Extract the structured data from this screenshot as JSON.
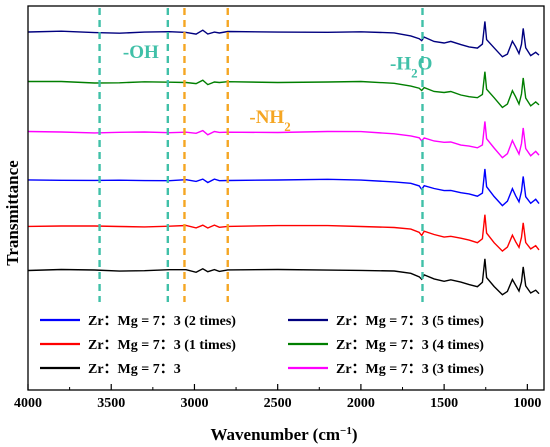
{
  "chart_data": {
    "type": "line",
    "title": "",
    "xlabel": "Wavenumber (cm",
    "xlabel_sup": "−1",
    "xlabel_close": ")",
    "ylabel": "Transmittance",
    "xlim": [
      4000,
      900
    ],
    "x_reversed": true,
    "x_ticks": [
      "4000",
      "3500",
      "3000",
      "2500",
      "2000",
      "1500",
      "1000"
    ],
    "y_ticks_shown": false,
    "grid": false,
    "legend_position": "bottom-center",
    "series": [
      {
        "name": "Zr：Mg = 7：3 (5 times)",
        "color": "#00007f",
        "offset": 5
      },
      {
        "name": "Zr：Mg = 7：3 (4 times)",
        "color": "#007f00",
        "offset": 4
      },
      {
        "name": "Zr：Mg = 7：3 (3 times)",
        "color": "#ff00ff",
        "offset": 3
      },
      {
        "name": "Zr：Mg = 7：3 (2 times)",
        "color": "#0000ff",
        "offset": 2
      },
      {
        "name": "Zr：Mg = 7：3 (1 times)",
        "color": "#ff0000",
        "offset": 1
      },
      {
        "name": "Zr：Mg = 7：3",
        "color": "#000000",
        "offset": 0
      }
    ],
    "legend_order": [
      3,
      0,
      4,
      1,
      5,
      2
    ],
    "spectrum_points": [
      [
        4000,
        0
      ],
      [
        3800,
        0.3
      ],
      [
        3600,
        -0.5
      ],
      [
        3450,
        -0.8
      ],
      [
        3300,
        -0.4
      ],
      [
        3150,
        -0.2
      ],
      [
        3050,
        0
      ],
      [
        2990,
        -2
      ],
      [
        2950,
        1.5
      ],
      [
        2920,
        -2.5
      ],
      [
        2880,
        0.5
      ],
      [
        2850,
        -1
      ],
      [
        2800,
        0
      ],
      [
        2500,
        0
      ],
      [
        2200,
        0.2
      ],
      [
        2000,
        0
      ],
      [
        1800,
        -1.5
      ],
      [
        1700,
        -4
      ],
      [
        1650,
        -7
      ],
      [
        1635,
        -10
      ],
      [
        1620,
        -6
      ],
      [
        1560,
        -10
      ],
      [
        1500,
        -12
      ],
      [
        1460,
        -11
      ],
      [
        1400,
        -14
      ],
      [
        1350,
        -16
      ],
      [
        1300,
        -18
      ],
      [
        1270,
        -14
      ],
      [
        1255,
        12
      ],
      [
        1245,
        -8
      ],
      [
        1200,
        -18
      ],
      [
        1150,
        -28
      ],
      [
        1120,
        -24
      ],
      [
        1090,
        -10
      ],
      [
        1070,
        -17
      ],
      [
        1050,
        -24
      ],
      [
        1035,
        -13
      ],
      [
        1025,
        4
      ],
      [
        1010,
        -18
      ],
      [
        980,
        -26
      ],
      [
        950,
        -22
      ],
      [
        930,
        -26
      ]
    ],
    "annotations": [
      {
        "text": "-OH",
        "sub": "",
        "color": "#40c0a8",
        "x": 3430,
        "y_frac": 0.135
      },
      {
        "text": "-NH",
        "sub": "2",
        "color": "#f5a623",
        "x": 2670,
        "y_frac": 0.305
      },
      {
        "text": "-H",
        "sub": "2",
        "text2": "O",
        "color": "#40c0a8",
        "x": 1825,
        "y_frac": 0.165
      }
    ],
    "dashed_lines": [
      {
        "x": 3570,
        "color": "#40c0a8"
      },
      {
        "x": 3160,
        "color": "#40c0a8"
      },
      {
        "x": 3060,
        "color": "#f5a623"
      },
      {
        "x": 2800,
        "color": "#f5a623"
      },
      {
        "x": 1630,
        "color": "#40c0a8"
      }
    ]
  }
}
